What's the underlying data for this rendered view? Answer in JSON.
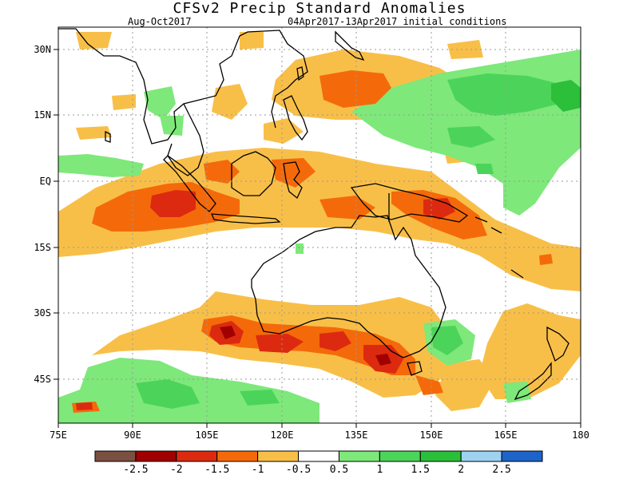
{
  "header": {
    "title": "CFSv2 Precip Standard Anomalies",
    "period": "Aug-Oct2017",
    "initial_conditions": "04Apr2017-13Apr2017 initial conditions"
  },
  "map": {
    "lon_ticks": [
      "75E",
      "90E",
      "105E",
      "120E",
      "135E",
      "150E",
      "165E",
      "180"
    ],
    "lat_ticks": [
      "30N",
      "15N",
      "EQ",
      "15S",
      "30S",
      "45S"
    ],
    "colors": {
      "dry_25": "#7a5040",
      "dry_2": "#a00000",
      "dry_15": "#dc2a10",
      "dry_1": "#f46a0a",
      "dry_05": "#f8bf48",
      "neutral": "#ffffff",
      "wet_05": "#7ee87a",
      "wet_1": "#4cd45a",
      "wet_15": "#2cbf3a",
      "wet_2": "#9ed2f0",
      "wet_25": "#1e64c8"
    }
  },
  "colorbar": {
    "labels": [
      "-2.5",
      "-2",
      "-1.5",
      "-1",
      "-0.5",
      "0.5",
      "1",
      "1.5",
      "2",
      "2.5"
    ],
    "colors": [
      "#7a5040",
      "#a00000",
      "#dc2a10",
      "#f46a0a",
      "#f8bf48",
      "#ffffff",
      "#7ee87a",
      "#4cd45a",
      "#2cbf3a",
      "#9ed2f0",
      "#1e64c8"
    ]
  }
}
